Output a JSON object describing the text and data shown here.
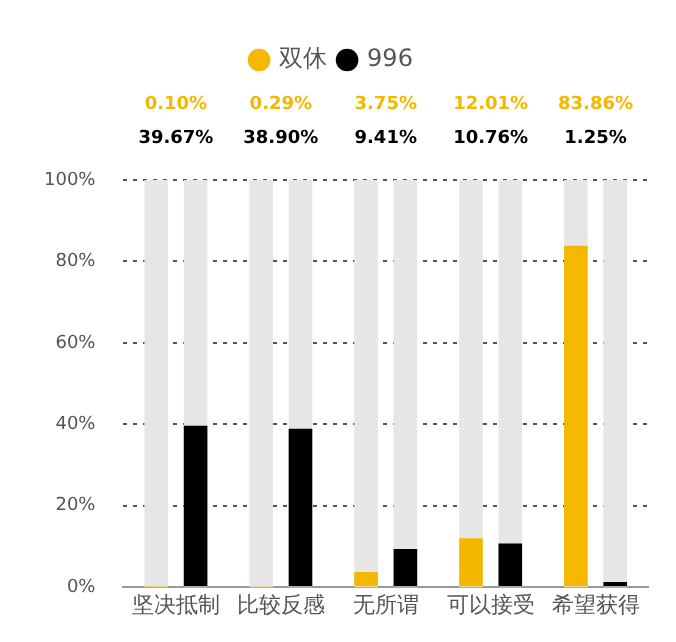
{
  "chart_data": {
    "type": "bar",
    "categories": [
      "坚决抵制",
      "比较反感",
      "无所谓",
      "可以接受",
      "希望获得"
    ],
    "series": [
      {
        "name": "双休",
        "color": "#f5b800",
        "values": [
          0.1,
          0.29,
          3.75,
          12.01,
          83.86
        ],
        "value_labels": [
          "0.10%",
          "0.29%",
          "3.75%",
          "12.01%",
          "83.86%"
        ]
      },
      {
        "name": "996",
        "color": "#000000",
        "values": [
          39.67,
          38.9,
          9.41,
          10.76,
          1.25
        ],
        "value_labels": [
          "39.67%",
          "38.90%",
          "9.41%",
          "10.76%",
          "1.25%"
        ]
      }
    ],
    "ylim": [
      0,
      100
    ],
    "yticks": [
      {
        "value": 0,
        "label": "0%"
      },
      {
        "value": 20,
        "label": "20%"
      },
      {
        "value": 40,
        "label": "40%"
      },
      {
        "value": 60,
        "label": "60%"
      },
      {
        "value": 80,
        "label": "80%"
      },
      {
        "value": 100,
        "label": "100%"
      }
    ],
    "grid": "y",
    "legend": "top"
  }
}
